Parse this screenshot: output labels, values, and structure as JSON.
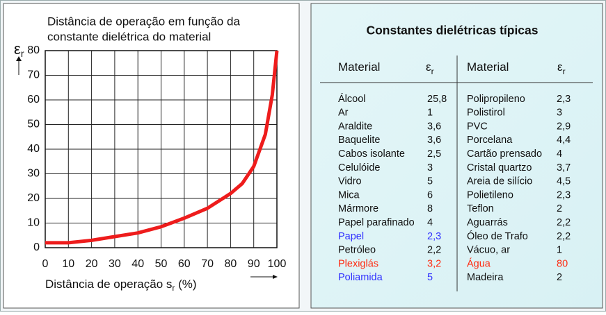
{
  "chart_data": {
    "type": "line",
    "title": [
      "Distância de operação em função da",
      "constante dielétrica do material"
    ],
    "ylabel": [
      "ε",
      "r"
    ],
    "xlabel": [
      "Distância de operação s",
      "r",
      " (%)"
    ],
    "x": [
      0,
      10,
      20,
      30,
      40,
      50,
      60,
      70,
      80,
      85,
      90,
      95,
      98,
      100
    ],
    "values": [
      2,
      2,
      3,
      4.5,
      6,
      8.5,
      12,
      16,
      22,
      26,
      33,
      46,
      62,
      80
    ],
    "color": "#ee1c1c",
    "xlim": [
      0,
      100
    ],
    "ylim": [
      0,
      80
    ],
    "xticks": [
      0,
      10,
      20,
      30,
      40,
      50,
      60,
      70,
      80,
      90,
      100
    ],
    "yticks": [
      0,
      10,
      20,
      30,
      40,
      50,
      60,
      70,
      80
    ],
    "grid": true
  },
  "table": {
    "title": "Constantes dielétricas típicas",
    "headers": [
      [
        "Material"
      ],
      [
        "ε",
        "r"
      ],
      [
        "Material"
      ],
      [
        "ε",
        "r"
      ]
    ],
    "left": [
      {
        "material": "Álcool",
        "er": "25,8"
      },
      {
        "material": "Ar",
        "er": "1"
      },
      {
        "material": "Araldite",
        "er": "3,6"
      },
      {
        "material": "Baquelite",
        "er": "3,6"
      },
      {
        "material": "Cabos isolante",
        "er": "2,5"
      },
      {
        "material": "Celulóide",
        "er": "3"
      },
      {
        "material": "Vidro",
        "er": "5"
      },
      {
        "material": "Mica",
        "er": "6"
      },
      {
        "material": "Mármore",
        "er": "8"
      },
      {
        "material": "Papel parafinado",
        "er": "4"
      },
      {
        "material": "Papel",
        "er": "2,3",
        "color": "#3030ff"
      },
      {
        "material": "Petróleo",
        "er": "2,2"
      },
      {
        "material": "Plexiglás",
        "er": "3,2",
        "color": "#ff2a10"
      },
      {
        "material": "Poliamida",
        "er": "5",
        "color": "#3030ff"
      }
    ],
    "right": [
      {
        "material": "Polipropileno",
        "er": "2,3"
      },
      {
        "material": "Polistirol",
        "er": "3"
      },
      {
        "material": "PVC",
        "er": "2,9"
      },
      {
        "material": "Porcelana",
        "er": "4,4"
      },
      {
        "material": "Cartão prensado",
        "er": "4"
      },
      {
        "material": "Cristal quartzo",
        "er": "3,7"
      },
      {
        "material": "Areia de silício",
        "er": "4,5"
      },
      {
        "material": "Polietileno",
        "er": "2,3"
      },
      {
        "material": "Teflon",
        "er": "2"
      },
      {
        "material": "Aguarrás",
        "er": "2,2"
      },
      {
        "material": "Óleo de Trafo",
        "er": "2,2"
      },
      {
        "material": "Vácuo, ar",
        "er": "1"
      },
      {
        "material": "Água",
        "er": "80",
        "color": "#ff2a10"
      },
      {
        "material": "Madeira",
        "er": "2"
      }
    ]
  }
}
